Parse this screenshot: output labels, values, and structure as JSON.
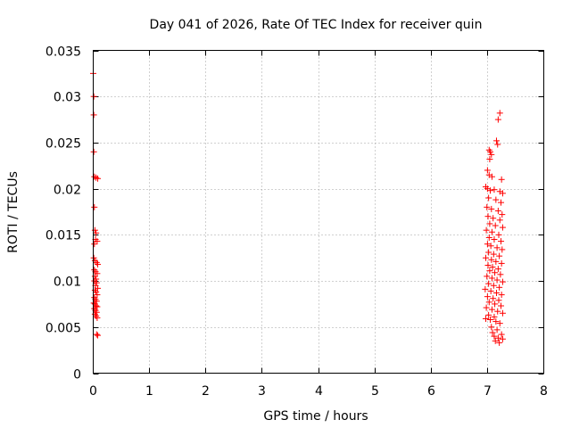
{
  "chart_data": {
    "type": "scatter",
    "title": "Day 041 of 2026, Rate Of TEC Index for receiver quin",
    "xlabel": "GPS time / hours",
    "ylabel": "ROTI / TECUs",
    "xlim": [
      0,
      8
    ],
    "ylim": [
      0,
      0.035
    ],
    "xticks": [
      0,
      1,
      2,
      3,
      4,
      5,
      6,
      7,
      8
    ],
    "xtick_labels": [
      "0",
      "1",
      "2",
      "3",
      "4",
      "5",
      "6",
      "7",
      "8"
    ],
    "yticks": [
      0,
      0.005,
      0.01,
      0.015,
      0.02,
      0.025,
      0.03,
      0.035
    ],
    "ytick_labels": [
      "0",
      "0.005",
      "0.01",
      "0.015",
      "0.02",
      "0.025",
      "0.03",
      "0.035"
    ],
    "grid": true,
    "marker": "+",
    "color": "#ff0000",
    "series": [
      {
        "name": "ROTI",
        "points": [
          [
            0.0,
            0.0325
          ],
          [
            0.01,
            0.03
          ],
          [
            0.01,
            0.028
          ],
          [
            0.01,
            0.024
          ],
          [
            0.02,
            0.0213
          ],
          [
            0.05,
            0.0212
          ],
          [
            0.08,
            0.0211
          ],
          [
            0.02,
            0.018
          ],
          [
            0.03,
            0.0155
          ],
          [
            0.05,
            0.0152
          ],
          [
            0.04,
            0.0145
          ],
          [
            0.07,
            0.0143
          ],
          [
            0.02,
            0.014
          ],
          [
            0.01,
            0.0125
          ],
          [
            0.03,
            0.0122
          ],
          [
            0.06,
            0.012
          ],
          [
            0.08,
            0.0118
          ],
          [
            0.02,
            0.0112
          ],
          [
            0.04,
            0.011
          ],
          [
            0.07,
            0.0108
          ],
          [
            0.03,
            0.0105
          ],
          [
            0.05,
            0.0102
          ],
          [
            0.02,
            0.01
          ],
          [
            0.06,
            0.0098
          ],
          [
            0.04,
            0.0095
          ],
          [
            0.08,
            0.0092
          ],
          [
            0.03,
            0.009
          ],
          [
            0.05,
            0.0088
          ],
          [
            0.07,
            0.0085
          ],
          [
            0.02,
            0.0082
          ],
          [
            0.04,
            0.008
          ],
          [
            0.06,
            0.0078
          ],
          [
            0.01,
            0.0076
          ],
          [
            0.03,
            0.0075
          ],
          [
            0.05,
            0.0073
          ],
          [
            0.07,
            0.0072
          ],
          [
            0.02,
            0.007
          ],
          [
            0.04,
            0.0068
          ],
          [
            0.06,
            0.0066
          ],
          [
            0.03,
            0.0064
          ],
          [
            0.05,
            0.0062
          ],
          [
            0.07,
            0.006
          ],
          [
            0.06,
            0.0042
          ],
          [
            0.08,
            0.0041
          ],
          [
            7.22,
            0.0282
          ],
          [
            7.19,
            0.0275
          ],
          [
            7.16,
            0.0252
          ],
          [
            7.18,
            0.0248
          ],
          [
            7.03,
            0.0242
          ],
          [
            7.05,
            0.024
          ],
          [
            7.07,
            0.0237
          ],
          [
            7.04,
            0.0232
          ],
          [
            7.0,
            0.022
          ],
          [
            7.03,
            0.0215
          ],
          [
            7.08,
            0.0213
          ],
          [
            7.25,
            0.021
          ],
          [
            6.97,
            0.0202
          ],
          [
            7.0,
            0.02
          ],
          [
            7.05,
            0.0198
          ],
          [
            7.12,
            0.0199
          ],
          [
            7.22,
            0.0197
          ],
          [
            7.27,
            0.0195
          ],
          [
            7.02,
            0.019
          ],
          [
            7.15,
            0.0188
          ],
          [
            7.24,
            0.0185
          ],
          [
            6.99,
            0.018
          ],
          [
            7.07,
            0.0178
          ],
          [
            7.19,
            0.0176
          ],
          [
            7.26,
            0.0172
          ],
          [
            7.01,
            0.017
          ],
          [
            7.1,
            0.0168
          ],
          [
            7.22,
            0.0166
          ],
          [
            7.04,
            0.0162
          ],
          [
            7.14,
            0.016
          ],
          [
            7.27,
            0.0158
          ],
          [
            6.98,
            0.0155
          ],
          [
            7.08,
            0.0153
          ],
          [
            7.2,
            0.015
          ],
          [
            7.03,
            0.0147
          ],
          [
            7.12,
            0.0145
          ],
          [
            7.24,
            0.0143
          ],
          [
            7.0,
            0.014
          ],
          [
            7.06,
            0.0138
          ],
          [
            7.17,
            0.0136
          ],
          [
            7.26,
            0.0134
          ],
          [
            7.02,
            0.0131
          ],
          [
            7.11,
            0.0129
          ],
          [
            7.21,
            0.0127
          ],
          [
            6.97,
            0.0125
          ],
          [
            7.07,
            0.0123
          ],
          [
            7.15,
            0.0121
          ],
          [
            7.25,
            0.0119
          ],
          [
            7.01,
            0.0117
          ],
          [
            7.09,
            0.0115
          ],
          [
            7.19,
            0.0113
          ],
          [
            7.04,
            0.0111
          ],
          [
            7.13,
            0.0109
          ],
          [
            7.23,
            0.0107
          ],
          [
            6.99,
            0.0105
          ],
          [
            7.08,
            0.0103
          ],
          [
            7.17,
            0.0101
          ],
          [
            7.27,
            0.0099
          ],
          [
            7.02,
            0.0097
          ],
          [
            7.11,
            0.0095
          ],
          [
            7.21,
            0.0093
          ],
          [
            6.96,
            0.0091
          ],
          [
            7.06,
            0.0089
          ],
          [
            7.16,
            0.0087
          ],
          [
            7.25,
            0.0085
          ],
          [
            7.0,
            0.0083
          ],
          [
            7.1,
            0.0081
          ],
          [
            7.2,
            0.0079
          ],
          [
            7.03,
            0.0077
          ],
          [
            7.13,
            0.0075
          ],
          [
            7.24,
            0.0073
          ],
          [
            6.98,
            0.0071
          ],
          [
            7.08,
            0.0069
          ],
          [
            7.18,
            0.0067
          ],
          [
            7.27,
            0.0065
          ],
          [
            7.02,
            0.0063
          ],
          [
            7.12,
            0.0061
          ],
          [
            6.97,
            0.0059
          ],
          [
            7.05,
            0.0058
          ],
          [
            7.15,
            0.0056
          ],
          [
            7.22,
            0.0054
          ],
          [
            7.07,
            0.005
          ],
          [
            7.17,
            0.0047
          ],
          [
            7.09,
            0.0044
          ],
          [
            7.25,
            0.0042
          ],
          [
            7.12,
            0.004
          ],
          [
            7.19,
            0.0038
          ],
          [
            7.27,
            0.0037
          ],
          [
            7.14,
            0.0035
          ],
          [
            7.21,
            0.0033
          ]
        ]
      }
    ]
  }
}
